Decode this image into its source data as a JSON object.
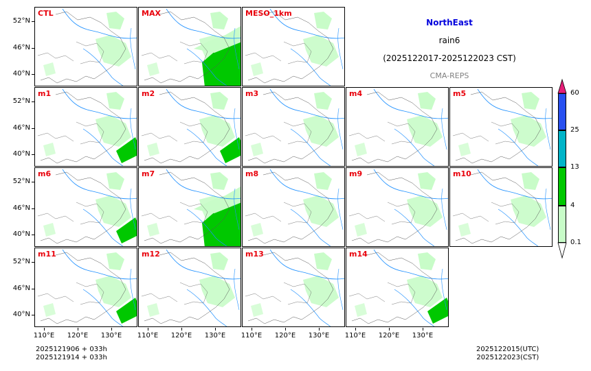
{
  "title": {
    "region": "NorthEast",
    "variable": "rain6",
    "period": "(2025122017-2025122023 CST)",
    "system": "CMA-REPS"
  },
  "panels": [
    {
      "label": "CTL",
      "rain": "light"
    },
    {
      "label": "MAX",
      "rain": "heavy"
    },
    {
      "label": "MESO_1km",
      "rain": "light"
    },
    {
      "label": "m1",
      "rain": "medium"
    },
    {
      "label": "m2",
      "rain": "medium"
    },
    {
      "label": "m3",
      "rain": "light"
    },
    {
      "label": "m4",
      "rain": "light"
    },
    {
      "label": "m5",
      "rain": "light"
    },
    {
      "label": "m6",
      "rain": "medium"
    },
    {
      "label": "m7",
      "rain": "heavy"
    },
    {
      "label": "m8",
      "rain": "light"
    },
    {
      "label": "m9",
      "rain": "light"
    },
    {
      "label": "m10",
      "rain": "light"
    },
    {
      "label": "m11",
      "rain": "medium"
    },
    {
      "label": "m12",
      "rain": "light"
    },
    {
      "label": "m13",
      "rain": "light"
    },
    {
      "label": "m14",
      "rain": "medium"
    }
  ],
  "lat_ticks": [
    "52°N",
    "46°N",
    "40°N"
  ],
  "lon_ticks": [
    "110°E",
    "120°E",
    "130°E"
  ],
  "colorbar": {
    "levels": [
      "0.1",
      "4",
      "13",
      "25",
      "60"
    ],
    "colors": [
      "#c8fcc8",
      "#00c800",
      "#00b4c8",
      "#2850f0",
      "#e61e78"
    ]
  },
  "footer": {
    "left_line1": "2025121906  +  033h",
    "left_line2": "2025121914  +  033h",
    "right_line1": "2025122015(UTC)",
    "right_line2": "2025122023(CST)"
  }
}
